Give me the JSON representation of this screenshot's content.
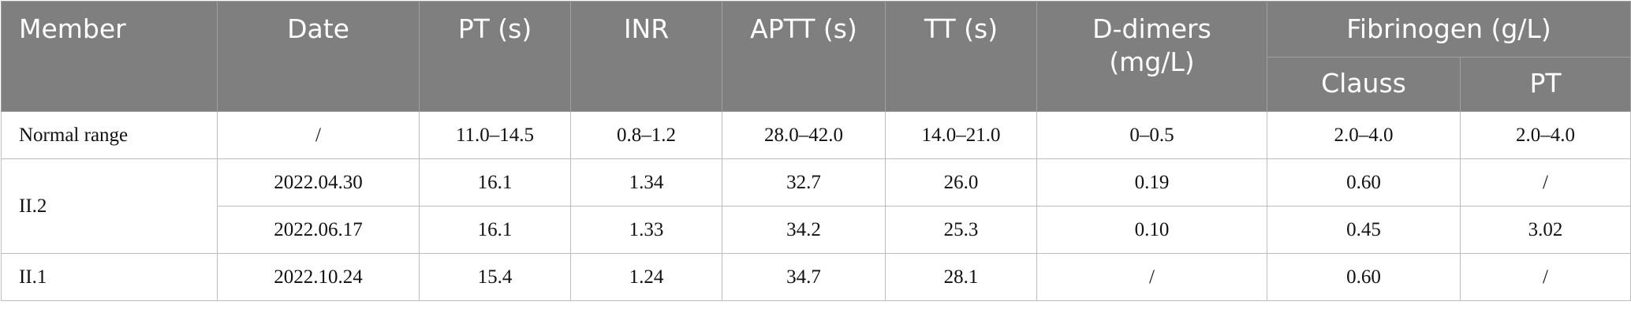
{
  "header": {
    "member": "Member",
    "date": "Date",
    "pt": "PT (s)",
    "inr": "INR",
    "aptt": "APTT (s)",
    "tt": "TT (s)",
    "ddimers_line1": "D-dimers",
    "ddimers_line2": "(mg/L)",
    "fibrinogen": "Fibrinogen (g/L)",
    "clauss": "Clauss",
    "fib_pt": "PT"
  },
  "rows": {
    "normal": {
      "member": "Normal range",
      "date": "/",
      "pt": "11.0–14.5",
      "inr": "0.8–1.2",
      "aptt": "28.0–42.0",
      "tt": "14.0–21.0",
      "ddimers": "0–0.5",
      "clauss": "2.0–4.0",
      "fib_pt": "2.0–4.0"
    },
    "ii2": {
      "member": "II.2",
      "entries": [
        {
          "date": "2022.04.30",
          "pt": "16.1",
          "inr": "1.34",
          "aptt": "32.7",
          "tt": "26.0",
          "ddimers": "0.19",
          "clauss": "0.60",
          "fib_pt": "/"
        },
        {
          "date": "2022.06.17",
          "pt": "16.1",
          "inr": "1.33",
          "aptt": "34.2",
          "tt": "25.3",
          "ddimers": "0.10",
          "clauss": "0.45",
          "fib_pt": "3.02"
        }
      ]
    },
    "ii1": {
      "member": "II.1",
      "date": "2022.10.24",
      "pt": "15.4",
      "inr": "1.24",
      "aptt": "34.7",
      "tt": "28.1",
      "ddimers": "/",
      "clauss": "0.60",
      "fib_pt": "/"
    }
  }
}
